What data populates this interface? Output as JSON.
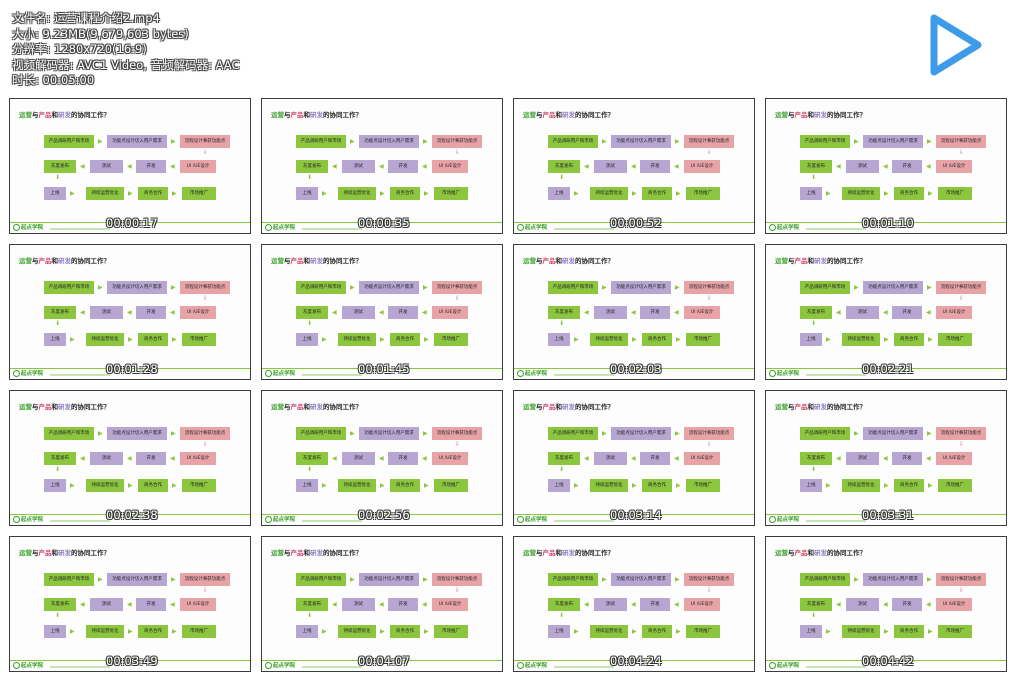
{
  "info": {
    "filename": "文件名: 运营课程介绍2.mp4",
    "size": "大小: 9.23MB(9,679,603 bytes)",
    "resolution": "分辨率: 1280x720(16:9)",
    "codec": "视频解码器: AVC1 Video, 音频解码器: AAC",
    "duration": "时长: 00:05:00"
  },
  "play_icon": "play-icon",
  "slide": {
    "title_a": "运营",
    "title_b": "与",
    "title_c": "产品",
    "title_d": "和",
    "title_e": "研发",
    "title_f": "的协同工作？",
    "row1": [
      "产品调研用户和市场",
      "功能点设计切入用户需求",
      "流程设计事获功能点"
    ],
    "row2": [
      "灰度发布",
      "测试",
      "开发",
      "UI /UE设计"
    ],
    "row3": [
      "上线",
      "持续运营优化",
      "商务合作",
      "市场推广"
    ],
    "logo": "起点学院"
  },
  "timestamps": [
    "00:00:17",
    "00:00:35",
    "00:00:52",
    "00:01:10",
    "00:01:28",
    "00:01:45",
    "00:02:03",
    "00:02:21",
    "00:02:38",
    "00:02:56",
    "00:03:14",
    "00:03:31",
    "00:03:49",
    "00:04:07",
    "00:04:24",
    "00:04:42"
  ],
  "colors": {
    "green": "#8cc63f",
    "purple": "#b7a6d2",
    "pink": "#e8a3a7",
    "play": "#3d9be9"
  }
}
